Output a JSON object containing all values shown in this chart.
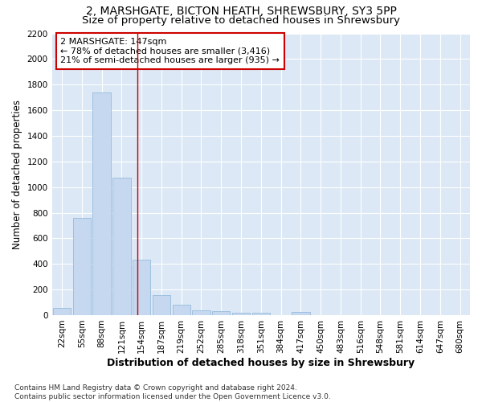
{
  "title_line1": "2, MARSHGATE, BICTON HEATH, SHREWSBURY, SY3 5PP",
  "title_line2": "Size of property relative to detached houses in Shrewsbury",
  "xlabel": "Distribution of detached houses by size in Shrewsbury",
  "ylabel": "Number of detached properties",
  "footnote": "Contains HM Land Registry data © Crown copyright and database right 2024.\nContains public sector information licensed under the Open Government Licence v3.0.",
  "bar_labels": [
    "22sqm",
    "55sqm",
    "88sqm",
    "121sqm",
    "154sqm",
    "187sqm",
    "219sqm",
    "252sqm",
    "285sqm",
    "318sqm",
    "351sqm",
    "384sqm",
    "417sqm",
    "450sqm",
    "483sqm",
    "516sqm",
    "548sqm",
    "581sqm",
    "614sqm",
    "647sqm",
    "680sqm"
  ],
  "bar_values": [
    55,
    760,
    1740,
    1075,
    430,
    155,
    80,
    40,
    30,
    20,
    20,
    0,
    25,
    0,
    0,
    0,
    0,
    0,
    0,
    0,
    0
  ],
  "bar_color": "#c5d8f0",
  "bar_edge_color": "#8ab4d8",
  "annotation_text": "2 MARSHGATE: 147sqm\n← 78% of detached houses are smaller (3,416)\n21% of semi-detached houses are larger (935) →",
  "annotation_box_color": "#ffffff",
  "annotation_box_edge": "#cc0000",
  "vline_color": "#cc0000",
  "ylim": [
    0,
    2200
  ],
  "yticks": [
    0,
    200,
    400,
    600,
    800,
    1000,
    1200,
    1400,
    1600,
    1800,
    2000,
    2200
  ],
  "fig_bg_color": "#ffffff",
  "plot_bg_color": "#dce8f5",
  "grid_color": "#ffffff",
  "title_fontsize": 10,
  "subtitle_fontsize": 9.5,
  "ylabel_fontsize": 8.5,
  "xlabel_fontsize": 9,
  "tick_fontsize": 7.5,
  "annotation_fontsize": 8,
  "footnote_fontsize": 6.5
}
